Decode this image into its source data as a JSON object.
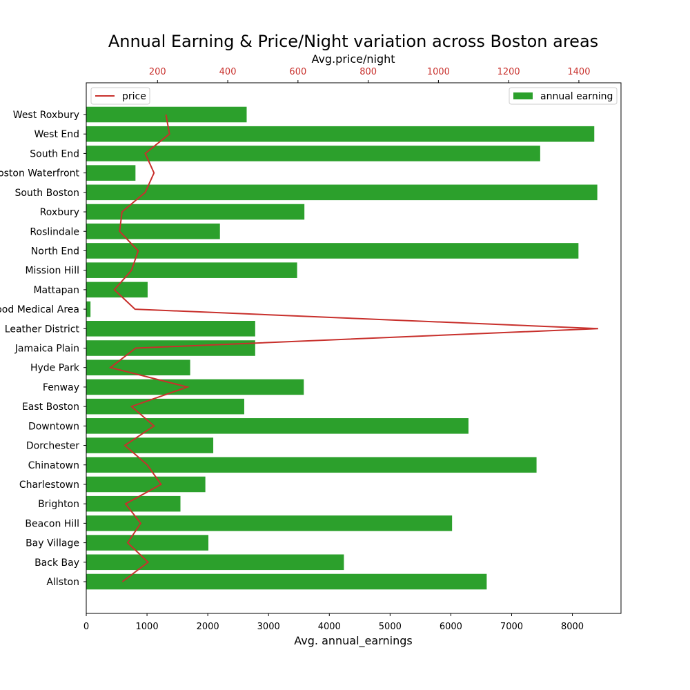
{
  "chart_data": {
    "type": "bar",
    "orientation": "horizontal",
    "title": "Annual Earning & Price/Night variation across Boston areas",
    "xlabel": "Avg. annual_earnings",
    "x2label": "Avg.price/night",
    "categories": [
      "Allston",
      "Back Bay",
      "Bay Village",
      "Beacon Hill",
      "Brighton",
      "Charlestown",
      "Chinatown",
      "Dorchester",
      "Downtown",
      "East Boston",
      "Fenway",
      "Hyde Park",
      "Jamaica Plain",
      "Leather District",
      "Longwood Medical Area",
      "Mattapan",
      "Mission Hill",
      "North End",
      "Roslindale",
      "Roxbury",
      "South Boston",
      "South Boston Waterfront",
      "South End",
      "West End",
      "West Roxbury"
    ],
    "xlim": [
      0,
      8800
    ],
    "x2lim": [
      -3,
      1520
    ],
    "xticks": [
      0,
      1000,
      2000,
      3000,
      4000,
      5000,
      6000,
      7000,
      8000
    ],
    "x2ticks": [
      200,
      400,
      600,
      800,
      1000,
      1200,
      1400
    ],
    "series": [
      {
        "name": "annual earning",
        "kind": "bar",
        "color": "#2ca02c",
        "legend": "upper right",
        "values": [
          6590,
          4240,
          2010,
          6020,
          1550,
          1960,
          7410,
          2090,
          6290,
          2600,
          3580,
          1710,
          2780,
          2780,
          70,
          1010,
          3470,
          8100,
          2200,
          3590,
          8410,
          810,
          7470,
          8360,
          2640
        ]
      },
      {
        "name": "price",
        "kind": "line",
        "color": "#c8302c",
        "legend": "upper left",
        "values": [
          100,
          173,
          115,
          152,
          109,
          210,
          171,
          107,
          190,
          126,
          285,
          66,
          138,
          1455,
          136,
          77,
          126,
          145,
          92,
          99,
          165,
          190,
          165,
          234,
          224
        ]
      }
    ]
  }
}
